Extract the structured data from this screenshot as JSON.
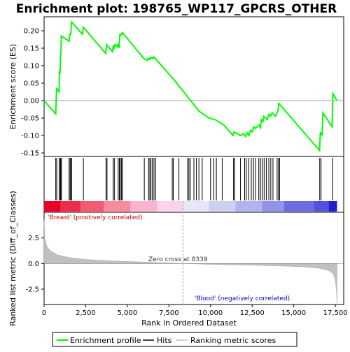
{
  "chart_data": {
    "type": "line",
    "title": "Enrichment plot: 198765_WP117_GPCRS_OTHER",
    "xlabel": "Rank in Ordered Dataset",
    "ylabel_top": "Enrichment score (ES)",
    "ylabel_bottom": "Ranked list metric (Diff_of_Classes)",
    "xlim": [
      0,
      18000
    ],
    "x_ticks": [
      0,
      2500,
      5000,
      7500,
      10000,
      12500,
      15000,
      17500
    ],
    "x_tick_labels": [
      "0",
      "2,500",
      "5,000",
      "7,500",
      "10,000",
      "12,500",
      "15,000",
      "17,500"
    ],
    "es_ylim": [
      -0.16,
      0.24
    ],
    "es_ticks": [
      -0.15,
      -0.1,
      -0.05,
      0.0,
      0.05,
      0.1,
      0.15,
      0.2
    ],
    "es_tick_labels": [
      "-0.15",
      "-0.10",
      "-0.05",
      "0.00",
      "0.05",
      "0.10",
      "0.15",
      "0.20"
    ],
    "metric_ylim": [
      -4.0,
      5.0
    ],
    "metric_ticks": [
      -2.5,
      0.0,
      2.5
    ],
    "metric_tick_labels": [
      "-2.5",
      "0.0",
      "2.5"
    ],
    "zero_cross_rank": 8339,
    "zero_cross_label": "Zero cross at 8339",
    "positive_label": "'Breast' (positively correlated)",
    "negative_label": "'Blood' (negatively correlated)",
    "n_genes": 17600,
    "enrichment_profile": [
      [
        0,
        0.0
      ],
      [
        700,
        -0.038
      ],
      [
        750,
        0.034
      ],
      [
        900,
        0.025
      ],
      [
        920,
        0.082
      ],
      [
        960,
        0.08
      ],
      [
        990,
        0.13
      ],
      [
        1010,
        0.135
      ],
      [
        1040,
        0.185
      ],
      [
        1500,
        0.17
      ],
      [
        1550,
        0.19
      ],
      [
        1600,
        0.19
      ],
      [
        1650,
        0.225
      ],
      [
        2300,
        0.19
      ],
      [
        2360,
        0.21
      ],
      [
        3700,
        0.135
      ],
      [
        3760,
        0.16
      ],
      [
        4100,
        0.14
      ],
      [
        4150,
        0.155
      ],
      [
        4200,
        0.15
      ],
      [
        4250,
        0.16
      ],
      [
        4400,
        0.155
      ],
      [
        4450,
        0.163
      ],
      [
        4500,
        0.15
      ],
      [
        4560,
        0.19
      ],
      [
        4650,
        0.188
      ],
      [
        4700,
        0.195
      ],
      [
        6000,
        0.12
      ],
      [
        6200,
        0.115
      ],
      [
        6260,
        0.122
      ],
      [
        6360,
        0.118
      ],
      [
        6420,
        0.124
      ],
      [
        6550,
        0.12
      ],
      [
        6600,
        0.125
      ],
      [
        7700,
        0.065
      ],
      [
        7800,
        0.06
      ],
      [
        9300,
        -0.03
      ],
      [
        9900,
        -0.05
      ],
      [
        10300,
        -0.055
      ],
      [
        10800,
        -0.07
      ],
      [
        11350,
        -0.1
      ],
      [
        11420,
        -0.09
      ],
      [
        11800,
        -0.1
      ],
      [
        12000,
        -0.095
      ],
      [
        12100,
        -0.103
      ],
      [
        12200,
        -0.092
      ],
      [
        12300,
        -0.1
      ],
      [
        12400,
        -0.085
      ],
      [
        12500,
        -0.09
      ],
      [
        12600,
        -0.075
      ],
      [
        12700,
        -0.08
      ],
      [
        12900,
        -0.07
      ],
      [
        13000,
        -0.078
      ],
      [
        13050,
        -0.055
      ],
      [
        13150,
        -0.06
      ],
      [
        13200,
        -0.045
      ],
      [
        13300,
        -0.05
      ],
      [
        13400,
        -0.055
      ],
      [
        13500,
        -0.04
      ],
      [
        13600,
        -0.045
      ],
      [
        13700,
        -0.035
      ],
      [
        13900,
        -0.045
      ],
      [
        14050,
        -0.03
      ],
      [
        14100,
        -0.008
      ],
      [
        16550,
        -0.143
      ],
      [
        16600,
        -0.09
      ],
      [
        16700,
        -0.1
      ],
      [
        16750,
        -0.035
      ],
      [
        17300,
        -0.075
      ],
      [
        17350,
        0.02
      ],
      [
        17600,
        0.0
      ]
    ],
    "hit_ranks": [
      700,
      760,
      905,
      970,
      1000,
      1040,
      1500,
      1560,
      1610,
      1650,
      2360,
      3720,
      3780,
      4150,
      4220,
      4450,
      4520,
      4580,
      4650,
      4720,
      6020,
      6280,
      6350,
      6420,
      6500,
      6600,
      6700,
      7700,
      7760,
      8100,
      8620,
      8700,
      8780,
      9000,
      9150,
      9300,
      9500,
      10000,
      10200,
      10350,
      10700,
      11380,
      11450,
      11800,
      12050,
      12150,
      12300,
      12450,
      12580,
      12700,
      12900,
      13000,
      13100,
      13220,
      13350,
      13500,
      13620,
      13750,
      14000,
      14080,
      14150,
      16560,
      16640,
      17330
    ],
    "metric_profile": [
      [
        0,
        4.3
      ],
      [
        40,
        2.5
      ],
      [
        150,
        1.7
      ],
      [
        400,
        1.2
      ],
      [
        800,
        0.85
      ],
      [
        1500,
        0.58
      ],
      [
        2500,
        0.4
      ],
      [
        4000,
        0.26
      ],
      [
        6000,
        0.14
      ],
      [
        8339,
        0.0
      ],
      [
        10000,
        -0.07
      ],
      [
        12000,
        -0.14
      ],
      [
        14000,
        -0.22
      ],
      [
        15500,
        -0.32
      ],
      [
        16500,
        -0.45
      ],
      [
        17100,
        -0.68
      ],
      [
        17350,
        -0.95
      ],
      [
        17450,
        -1.3
      ],
      [
        17520,
        -1.9
      ],
      [
        17570,
        -2.8
      ],
      [
        17600,
        -4.0
      ]
    ],
    "colorbar_segments": [
      {
        "start": 0,
        "end": 1000,
        "color": "#e8002a"
      },
      {
        "start": 1000,
        "end": 2200,
        "color": "#ee2c4c"
      },
      {
        "start": 2200,
        "end": 3600,
        "color": "#f45b73"
      },
      {
        "start": 3600,
        "end": 5200,
        "color": "#f98aa0"
      },
      {
        "start": 5200,
        "end": 6800,
        "color": "#fbb4d0"
      },
      {
        "start": 6800,
        "end": 8339,
        "color": "#fcd3ea"
      },
      {
        "start": 8339,
        "end": 9900,
        "color": "#e6e6f7"
      },
      {
        "start": 9900,
        "end": 11500,
        "color": "#cfcff4"
      },
      {
        "start": 11500,
        "end": 13100,
        "color": "#b2b2ee"
      },
      {
        "start": 13100,
        "end": 14400,
        "color": "#9292e7"
      },
      {
        "start": 14400,
        "end": 16200,
        "color": "#6d6de2"
      },
      {
        "start": 16200,
        "end": 17100,
        "color": "#5252dc"
      },
      {
        "start": 17100,
        "end": 17600,
        "color": "#1f1fd0"
      }
    ],
    "colors": {
      "profile": "#00ff00",
      "hits": "#000000",
      "metric_fill": "#c0c0c0",
      "positive_text": "#cc0000",
      "negative_text": "#0000cc",
      "zero_line": "#808080",
      "zero_cross_line": "#a0a0a0"
    }
  },
  "legend": {
    "items": [
      {
        "label": "Enrichment profile",
        "icon": "green-line-icon",
        "color": "#00ff00"
      },
      {
        "label": "Hits",
        "icon": "black-line-icon",
        "color": "#000000"
      },
      {
        "label": "Ranking metric scores",
        "icon": "gray-line-icon",
        "color": "#c0c0c0"
      }
    ]
  }
}
